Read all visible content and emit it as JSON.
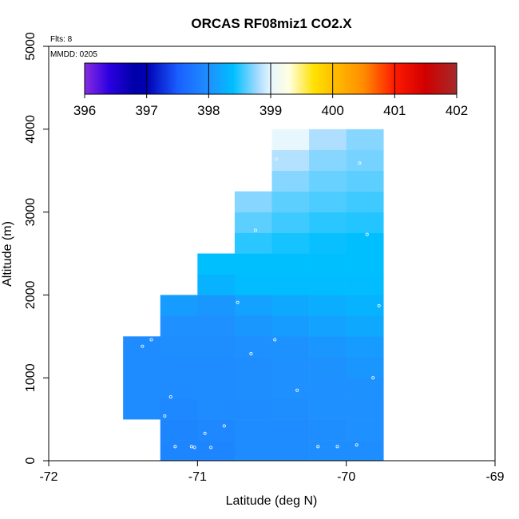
{
  "chart_data": {
    "type": "heatmap",
    "title": "ORCAS RF08miz1 CO2.X",
    "xlabel": "Latitude (deg N)",
    "ylabel": "Altitude (m)",
    "xlim": [
      -72,
      -69
    ],
    "ylim": [
      0,
      5000
    ],
    "x_ticks": [
      -72,
      -71,
      -70,
      -69
    ],
    "x_tick_labels": [
      "-72",
      "-71",
      "-70",
      "-69"
    ],
    "y_ticks": [
      0,
      1000,
      2000,
      3000,
      4000,
      5000
    ],
    "y_tick_labels": [
      "0",
      "1000",
      "2000",
      "3000",
      "4000",
      "5000"
    ],
    "grid": false,
    "flights_note": "Flts: 8",
    "date_note": "MMDD: 0205",
    "colorbar": {
      "min": 396,
      "max": 402,
      "ticks": [
        396,
        397,
        398,
        399,
        400,
        401,
        402
      ],
      "tick_labels": [
        "396",
        "397",
        "398",
        "399",
        "400",
        "401",
        "402"
      ],
      "stops": [
        {
          "value": 396.0,
          "color": "#8a2be2"
        },
        {
          "value": 396.4,
          "color": "#2a00e0"
        },
        {
          "value": 396.8,
          "color": "#0000a8"
        },
        {
          "value": 397.0,
          "color": "#0000b4"
        },
        {
          "value": 397.5,
          "color": "#1a5eff"
        },
        {
          "value": 398.0,
          "color": "#1e90ff"
        },
        {
          "value": 398.4,
          "color": "#00bfff"
        },
        {
          "value": 398.8,
          "color": "#a8dcff"
        },
        {
          "value": 399.0,
          "color": "#e6f6ff"
        },
        {
          "value": 399.3,
          "color": "#ffffe0"
        },
        {
          "value": 399.7,
          "color": "#ffe100"
        },
        {
          "value": 400.0,
          "color": "#ffc000"
        },
        {
          "value": 400.5,
          "color": "#ff8c00"
        },
        {
          "value": 401.0,
          "color": "#ff1a00"
        },
        {
          "value": 401.5,
          "color": "#d00000"
        },
        {
          "value": 402.0,
          "color": "#a52a2a"
        }
      ]
    },
    "cell_size": {
      "dlat": 0.25,
      "dalt": 250
    },
    "columns": [
      {
        "lat": -71.375,
        "alt_start": 500,
        "values": [
          397.95,
          397.95,
          397.95,
          397.95
        ]
      },
      {
        "lat": -71.125,
        "alt_start": 0,
        "values": [
          397.9,
          397.9,
          397.92,
          397.95,
          397.95,
          397.98,
          398.0,
          398.1
        ]
      },
      {
        "lat": -70.875,
        "alt_start": 0,
        "values": [
          397.9,
          397.92,
          397.95,
          397.95,
          397.96,
          397.98,
          398.0,
          398.05,
          398.3,
          398.4
        ]
      },
      {
        "lat": -70.625,
        "alt_start": 0,
        "values": [
          397.95,
          397.95,
          397.96,
          397.98,
          397.98,
          398.0,
          398.05,
          398.15,
          398.38,
          398.4,
          398.5,
          398.62,
          398.72
        ]
      },
      {
        "lat": -70.375,
        "alt_start": 0,
        "values": [
          397.95,
          397.96,
          397.98,
          398.0,
          398.0,
          398.02,
          398.1,
          398.2,
          398.38,
          398.4,
          398.45,
          398.55,
          398.62,
          398.72,
          398.84,
          399.02
        ]
      },
      {
        "lat": -70.125,
        "alt_start": 0,
        "values": [
          397.98,
          397.98,
          398.0,
          398.0,
          398.02,
          398.05,
          398.15,
          398.25,
          398.38,
          398.4,
          398.42,
          398.5,
          398.58,
          398.65,
          398.72,
          398.82
        ]
      },
      {
        "lat": -69.875,
        "alt_start": 0,
        "values": [
          397.98,
          398.0,
          398.0,
          398.02,
          398.05,
          398.1,
          398.2,
          398.3,
          398.38,
          398.4,
          398.4,
          398.48,
          398.55,
          398.62,
          398.68,
          398.72
        ]
      }
    ],
    "points": [
      {
        "lat": -71.22,
        "alt": 540
      },
      {
        "lat": -71.18,
        "alt": 770
      },
      {
        "lat": -71.37,
        "alt": 1380
      },
      {
        "lat": -71.31,
        "alt": 1460
      },
      {
        "lat": -71.15,
        "alt": 170
      },
      {
        "lat": -71.04,
        "alt": 170
      },
      {
        "lat": -71.02,
        "alt": 160
      },
      {
        "lat": -70.95,
        "alt": 330
      },
      {
        "lat": -70.91,
        "alt": 160
      },
      {
        "lat": -70.82,
        "alt": 420
      },
      {
        "lat": -70.73,
        "alt": 1910
      },
      {
        "lat": -70.64,
        "alt": 1290
      },
      {
        "lat": -70.48,
        "alt": 1460
      },
      {
        "lat": -70.33,
        "alt": 850
      },
      {
        "lat": -70.19,
        "alt": 170
      },
      {
        "lat": -70.06,
        "alt": 170
      },
      {
        "lat": -69.93,
        "alt": 190
      },
      {
        "lat": -69.82,
        "alt": 1000
      },
      {
        "lat": -69.78,
        "alt": 1870
      },
      {
        "lat": -70.61,
        "alt": 2780
      },
      {
        "lat": -69.86,
        "alt": 2730
      },
      {
        "lat": -70.47,
        "alt": 3640
      },
      {
        "lat": -69.91,
        "alt": 3590
      }
    ]
  }
}
